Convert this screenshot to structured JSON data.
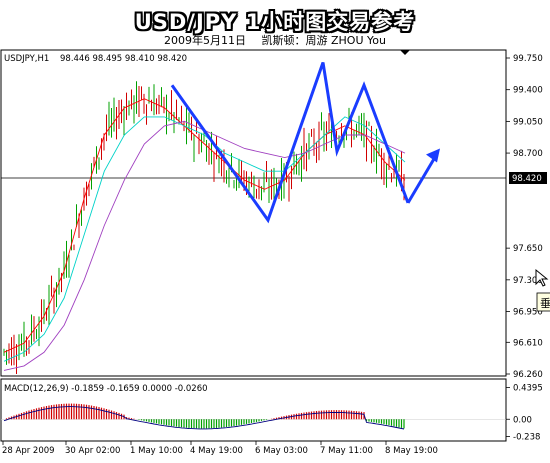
{
  "header": {
    "title": "USD/JPY 1小时图交易参考",
    "date": "2009年5月11日",
    "author": "凯斯顿：周游 ZHOU You"
  },
  "chart_data": [
    {
      "type": "candlestick",
      "panel": "main",
      "symbol_label": "USDJPY,H1",
      "ohlc_label": "98.446 98.495 98.410 98.420",
      "current_price": "98.420",
      "y_ticks": [
        "99.750",
        "99.400",
        "99.050",
        "98.700",
        "98.420",
        "97.650",
        "97.300",
        "96.950",
        "96.610",
        "96.260"
      ],
      "ylim": [
        96.26,
        99.75
      ],
      "x_ticks": [
        "28 Apr 2009",
        "30 Apr 02:00",
        "1 May 10:00",
        "4 May 19:00",
        "6 May 03:00",
        "7 May 11:00",
        "8 May 19:00"
      ],
      "series": [
        {
          "type": "ma",
          "color": "#ff0000",
          "values": [
            96.5,
            96.6,
            96.9,
            97.4,
            98.2,
            98.9,
            99.2,
            99.3,
            99.2,
            99.0,
            98.8,
            98.6,
            98.4,
            98.3,
            98.4,
            98.7,
            98.9,
            99.0,
            98.9,
            98.6,
            98.4
          ]
        },
        {
          "type": "ma",
          "color": "#00d2c8",
          "values": [
            96.4,
            96.5,
            96.7,
            97.1,
            97.8,
            98.5,
            98.9,
            99.1,
            99.1,
            99.0,
            98.9,
            98.7,
            98.6,
            98.5,
            98.5,
            98.7,
            98.9,
            99.1,
            99.0,
            98.8,
            98.6
          ]
        },
        {
          "type": "ma",
          "color": "#a040c0",
          "values": [
            96.3,
            96.35,
            96.5,
            96.8,
            97.3,
            97.9,
            98.4,
            98.8,
            99.0,
            99.05,
            98.95,
            98.85,
            98.75,
            98.7,
            98.65,
            98.7,
            98.8,
            98.9,
            98.9,
            98.8,
            98.7
          ]
        }
      ],
      "pattern": {
        "color": "#1a3cff",
        "points": [
          [
            172,
            99.45
          ],
          [
            268,
            97.96
          ],
          [
            323,
            99.7
          ],
          [
            337,
            98.72
          ],
          [
            364,
            99.45
          ],
          [
            408,
            98.15
          ]
        ],
        "arrow_to": [
          440,
          98.75
        ]
      }
    },
    {
      "type": "bar",
      "panel": "indicator",
      "label": "MACD(12,26,9) -0.1859 -0.1659 0.0000 -0.0260",
      "y_ticks": [
        "0.4395",
        "0.00",
        "-0.238"
      ],
      "ylim": [
        -0.3,
        0.5
      ]
    }
  ],
  "overlay": {
    "cursor_tooltip": "垂"
  }
}
